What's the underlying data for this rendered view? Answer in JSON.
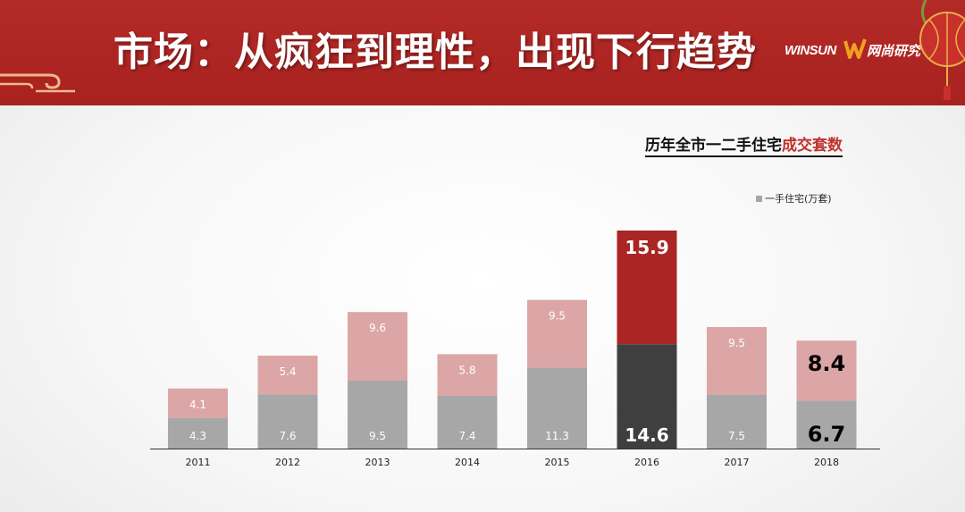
{
  "header": {
    "title": "市场：从疯狂到理性，出现下行趋势",
    "logo_en": "WINSUN",
    "logo_cn": "网尚研究",
    "colors": {
      "banner": "#a8221f",
      "title_text": "#ffffff"
    }
  },
  "chart_title": {
    "prefix": "历年全市一二手住宅",
    "highlight": "成交套数"
  },
  "legend": {
    "label": "一手住宅(万套)"
  },
  "chart_data": {
    "type": "bar",
    "stacked": true,
    "categories": [
      "2011",
      "2012",
      "2013",
      "2014",
      "2015",
      "2016",
      "2017",
      "2018"
    ],
    "series": [
      {
        "name": "一手住宅(万套)",
        "values": [
          4.3,
          7.6,
          9.5,
          7.4,
          11.3,
          14.6,
          7.5,
          6.7
        ]
      },
      {
        "values": [
          4.1,
          5.4,
          9.6,
          5.8,
          9.5,
          15.9,
          9.5,
          8.4
        ]
      }
    ],
    "highlight_category": "2016",
    "emphasis_categories": [
      "2016",
      "2018"
    ],
    "ylim": [
      0,
      31
    ],
    "grid": false,
    "legend_position": "top-right",
    "colors": {
      "bottom": "#a7a7a7",
      "top": "#dca6a6",
      "bottom_highlight": "#3f3f3f",
      "top_highlight": "#a92624",
      "label": "#ffffff",
      "label_emphasis_dark": "#000000",
      "axis": "#333333"
    }
  }
}
